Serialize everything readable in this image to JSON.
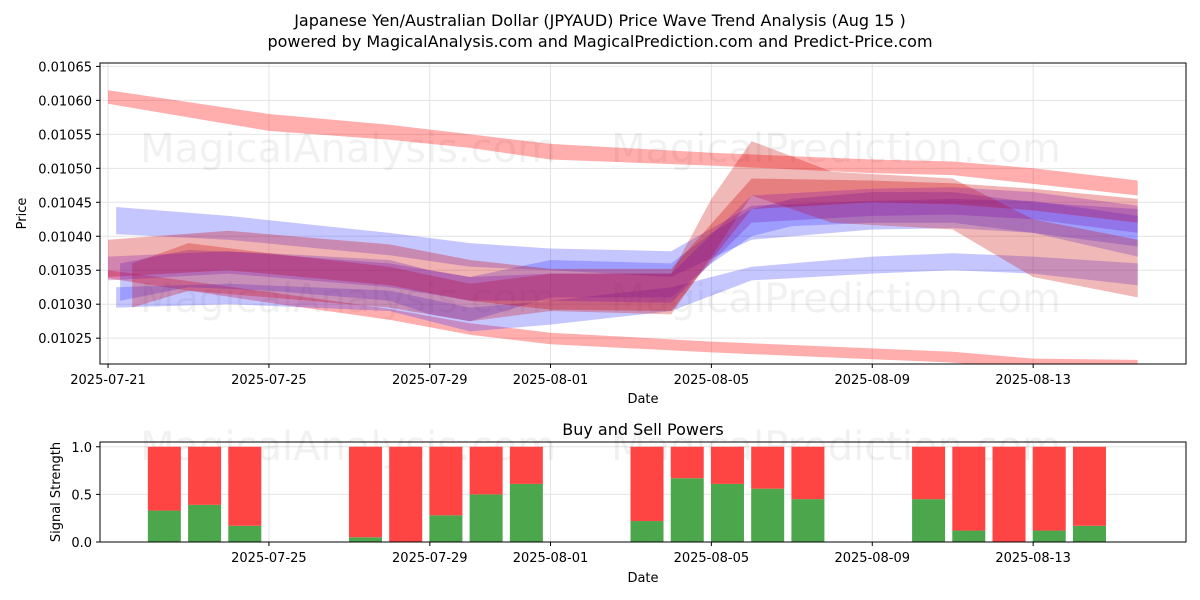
{
  "chart_data": [
    {
      "type": "area",
      "title": "Japanese Yen/Australian Dollar (JPYAUD) Price Wave Trend Analysis (Aug 15 )",
      "subtitle": "powered by MagicalAnalysis.com and MagicalPrediction.com and Predict-Price.com",
      "xlabel": "Date",
      "ylabel": "Price",
      "x_range_days": [
        -0.2,
        26.8
      ],
      "ylim": [
        0.010212,
        0.010655
      ],
      "x_ticks": [
        {
          "label": "2025-07-21",
          "day": 0
        },
        {
          "label": "2025-07-25",
          "day": 4
        },
        {
          "label": "2025-07-29",
          "day": 8
        },
        {
          "label": "2025-08-01",
          "day": 11
        },
        {
          "label": "2025-08-05",
          "day": 15
        },
        {
          "label": "2025-08-09",
          "day": 19
        },
        {
          "label": "2025-08-13",
          "day": 23
        }
      ],
      "y_ticks": [
        "0.01025",
        "0.01030",
        "0.01035",
        "0.01040",
        "0.01045",
        "0.01050",
        "0.01055",
        "0.01060",
        "0.01065"
      ],
      "grid": true,
      "series": [
        {
          "name": "upper-envelope",
          "color": "#ff0000",
          "opacity": 0.32,
          "x": [
            0,
            4,
            7,
            9,
            11,
            15,
            19,
            21,
            23,
            25.6
          ],
          "upper": [
            0.010615,
            0.01058,
            0.010564,
            0.01055,
            0.010536,
            0.010523,
            0.010513,
            0.01051,
            0.0105,
            0.010482
          ],
          "lower": [
            0.010595,
            0.010555,
            0.010542,
            0.01053,
            0.010513,
            0.010504,
            0.010493,
            0.01049,
            0.010477,
            0.01046
          ]
        },
        {
          "name": "lower-envelope",
          "color": "#ff0000",
          "opacity": 0.32,
          "x": [
            0,
            4,
            7,
            9,
            11,
            15,
            19,
            21,
            23,
            25.6
          ],
          "upper": [
            0.01035,
            0.010318,
            0.010293,
            0.010272,
            0.010258,
            0.010245,
            0.010235,
            0.01023,
            0.01022,
            0.010218
          ],
          "lower": [
            0.010338,
            0.010302,
            0.010277,
            0.010255,
            0.010241,
            0.010229,
            0.010219,
            0.010214,
            0.010205,
            0.010205
          ]
        },
        {
          "name": "blue-band-1",
          "color": "#3333ff",
          "opacity": 0.28,
          "x": [
            0.2,
            3,
            7,
            9,
            11,
            14,
            16,
            19,
            21,
            23,
            25.6
          ],
          "upper": [
            0.010443,
            0.01043,
            0.010405,
            0.01039,
            0.010382,
            0.010378,
            0.010445,
            0.010452,
            0.010455,
            0.010452,
            0.01043
          ],
          "lower": [
            0.010403,
            0.010395,
            0.010372,
            0.010355,
            0.01035,
            0.01034,
            0.010395,
            0.01041,
            0.010412,
            0.010405,
            0.01037
          ]
        },
        {
          "name": "blue-band-2",
          "color": "#3333ff",
          "opacity": 0.28,
          "x": [
            0.2,
            3,
            7,
            9,
            11,
            14,
            16,
            19,
            21,
            23,
            25.6
          ],
          "upper": [
            0.010325,
            0.01033,
            0.01032,
            0.010295,
            0.010305,
            0.010325,
            0.010355,
            0.01037,
            0.010375,
            0.01037,
            0.01036
          ],
          "lower": [
            0.010295,
            0.0103,
            0.01029,
            0.01026,
            0.01027,
            0.01029,
            0.010335,
            0.010345,
            0.01035,
            0.010345,
            0.010328
          ]
        },
        {
          "name": "blue-band-3",
          "color": "#3333ff",
          "opacity": 0.28,
          "x": [
            0.3,
            2,
            4,
            7,
            8,
            9,
            11,
            14,
            15,
            16,
            17,
            19,
            21,
            23,
            25.6
          ],
          "upper": [
            0.01036,
            0.01038,
            0.010375,
            0.010365,
            0.01035,
            0.01034,
            0.010365,
            0.01036,
            0.010405,
            0.01044,
            0.010455,
            0.010465,
            0.010465,
            0.01045,
            0.01044
          ],
          "lower": [
            0.010305,
            0.010325,
            0.01032,
            0.010305,
            0.010285,
            0.010275,
            0.01031,
            0.01031,
            0.01036,
            0.0104,
            0.010415,
            0.01042,
            0.01042,
            0.010405,
            0.010385
          ]
        },
        {
          "name": "red-band-1",
          "color": "#cc0000",
          "opacity": 0.3,
          "x": [
            0,
            3,
            7,
            9,
            11,
            14,
            16,
            19,
            21,
            23,
            25.6
          ],
          "upper": [
            0.010395,
            0.010408,
            0.010388,
            0.010365,
            0.010352,
            0.010352,
            0.010485,
            0.010482,
            0.010478,
            0.01047,
            0.010455
          ],
          "lower": [
            0.01034,
            0.01035,
            0.010328,
            0.010305,
            0.010292,
            0.01029,
            0.01044,
            0.01045,
            0.010447,
            0.010438,
            0.01042
          ]
        },
        {
          "name": "red-band-2",
          "color": "#cc0000",
          "opacity": 0.28,
          "x": [
            0.6,
            2,
            4,
            7,
            9,
            11,
            14,
            15,
            16,
            18,
            21,
            23,
            25.6
          ],
          "upper": [
            0.01036,
            0.01039,
            0.010375,
            0.010355,
            0.01033,
            0.010345,
            0.010345,
            0.010455,
            0.01054,
            0.010495,
            0.010485,
            0.010425,
            0.010395
          ],
          "lower": [
            0.010295,
            0.01032,
            0.01031,
            0.010295,
            0.010275,
            0.01029,
            0.010285,
            0.01037,
            0.01046,
            0.01042,
            0.01041,
            0.01034,
            0.01031
          ]
        },
        {
          "name": "purple-band",
          "color": "#7700aa",
          "opacity": 0.25,
          "x": [
            0,
            3,
            7,
            9,
            11,
            14,
            16,
            19,
            21,
            23,
            25.6
          ],
          "upper": [
            0.01037,
            0.010378,
            0.01036,
            0.01034,
            0.010345,
            0.010345,
            0.01046,
            0.01047,
            0.010472,
            0.010465,
            0.010445
          ],
          "lower": [
            0.010335,
            0.010345,
            0.010325,
            0.010305,
            0.010305,
            0.010302,
            0.01042,
            0.01043,
            0.010432,
            0.010425,
            0.010405
          ]
        }
      ]
    },
    {
      "type": "bar",
      "title": "Buy and Sell Powers",
      "xlabel": "Date",
      "ylabel": "Signal Strength",
      "ylim": [
        0,
        1.05
      ],
      "x_range_days": [
        -0.2,
        26.8
      ],
      "x_ticks": [
        {
          "label": "2025-07-25",
          "day": 4
        },
        {
          "label": "2025-07-29",
          "day": 8
        },
        {
          "label": "2025-08-01",
          "day": 11
        },
        {
          "label": "2025-08-05",
          "day": 15
        },
        {
          "label": "2025-08-09",
          "day": 19
        },
        {
          "label": "2025-08-13",
          "day": 23
        }
      ],
      "y_ticks": [
        "0.0",
        "0.5",
        "1.0"
      ],
      "grid": true,
      "buy_color": "#4ca64c",
      "sell_color": "#ff4444",
      "x": [
        1.4,
        2.4,
        3.4,
        6.4,
        7.4,
        8.4,
        9.4,
        10.4,
        13.4,
        14.4,
        15.4,
        16.4,
        17.4,
        20.4,
        21.4,
        22.4,
        23.4,
        24.4
      ],
      "buy": [
        0.33,
        0.39,
        0.17,
        0.05,
        0.0,
        0.28,
        0.5,
        0.61,
        0.22,
        0.67,
        0.61,
        0.56,
        0.45,
        0.45,
        0.12,
        0.0,
        0.12,
        0.17
      ],
      "sell": [
        0.67,
        0.61,
        0.83,
        0.95,
        1.0,
        0.72,
        0.5,
        0.39,
        0.78,
        0.33,
        0.39,
        0.44,
        0.55,
        0.55,
        0.88,
        1.0,
        0.88,
        0.83
      ]
    }
  ],
  "watermarks": [
    "MagicalAnalysis.com",
    "MagicalPrediction.com"
  ]
}
